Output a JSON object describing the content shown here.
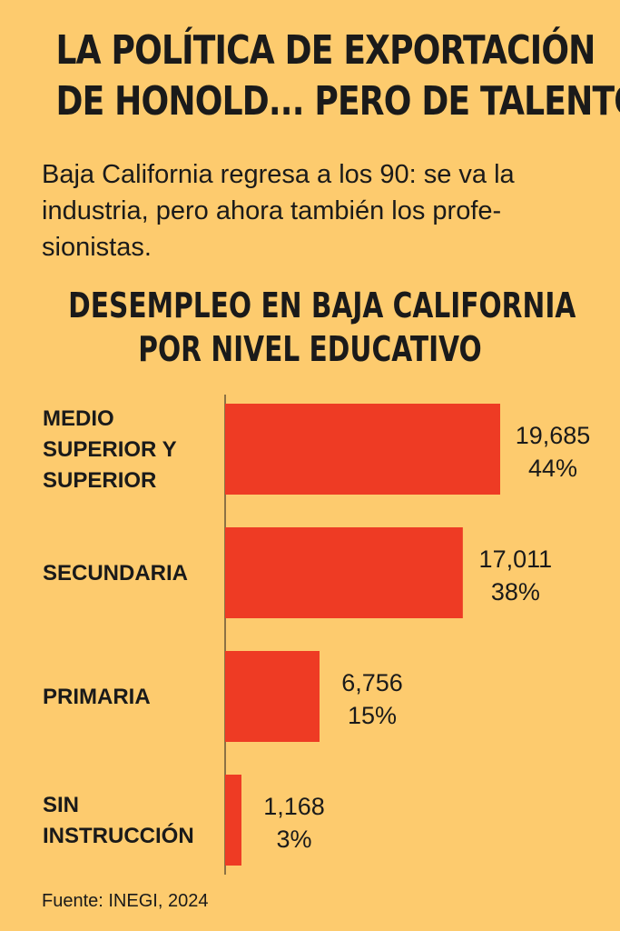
{
  "headline": {
    "line1": "LA POLÍTICA DE EXPORTACIÓN",
    "line2": "DE HONOLD... PERO DE TALENTO"
  },
  "dek": {
    "line1": "Baja California regresa a los 90: se va la",
    "line2": "industria, pero ahora también los profe-",
    "line3": "sionistas."
  },
  "source": "Fuente: INEGI, 2024",
  "colors": {
    "background": "#FDCB6E",
    "bar": "#EE3B24",
    "text": "#1a1a1a"
  },
  "chart_data": {
    "type": "bar",
    "orientation": "horizontal",
    "title_lines": [
      "DESEMPLEO EN BAJA CALIFORNIA",
      "POR NIVEL EDUCATIVO"
    ],
    "categories": [
      [
        "MEDIO",
        "SUPERIOR Y",
        "SUPERIOR"
      ],
      [
        "SECUNDARIA"
      ],
      [
        "PRIMARIA"
      ],
      [
        "SIN",
        "INSTRUCCIÓN"
      ]
    ],
    "values": [
      19685,
      17011,
      6756,
      1168
    ],
    "value_labels": [
      "19,685",
      "17,011",
      "6,756",
      "1,168"
    ],
    "percent_labels": [
      "44%",
      "38%",
      "15%",
      "3%"
    ],
    "xlim": [
      0,
      19685
    ],
    "grid": false,
    "legend": "none"
  }
}
